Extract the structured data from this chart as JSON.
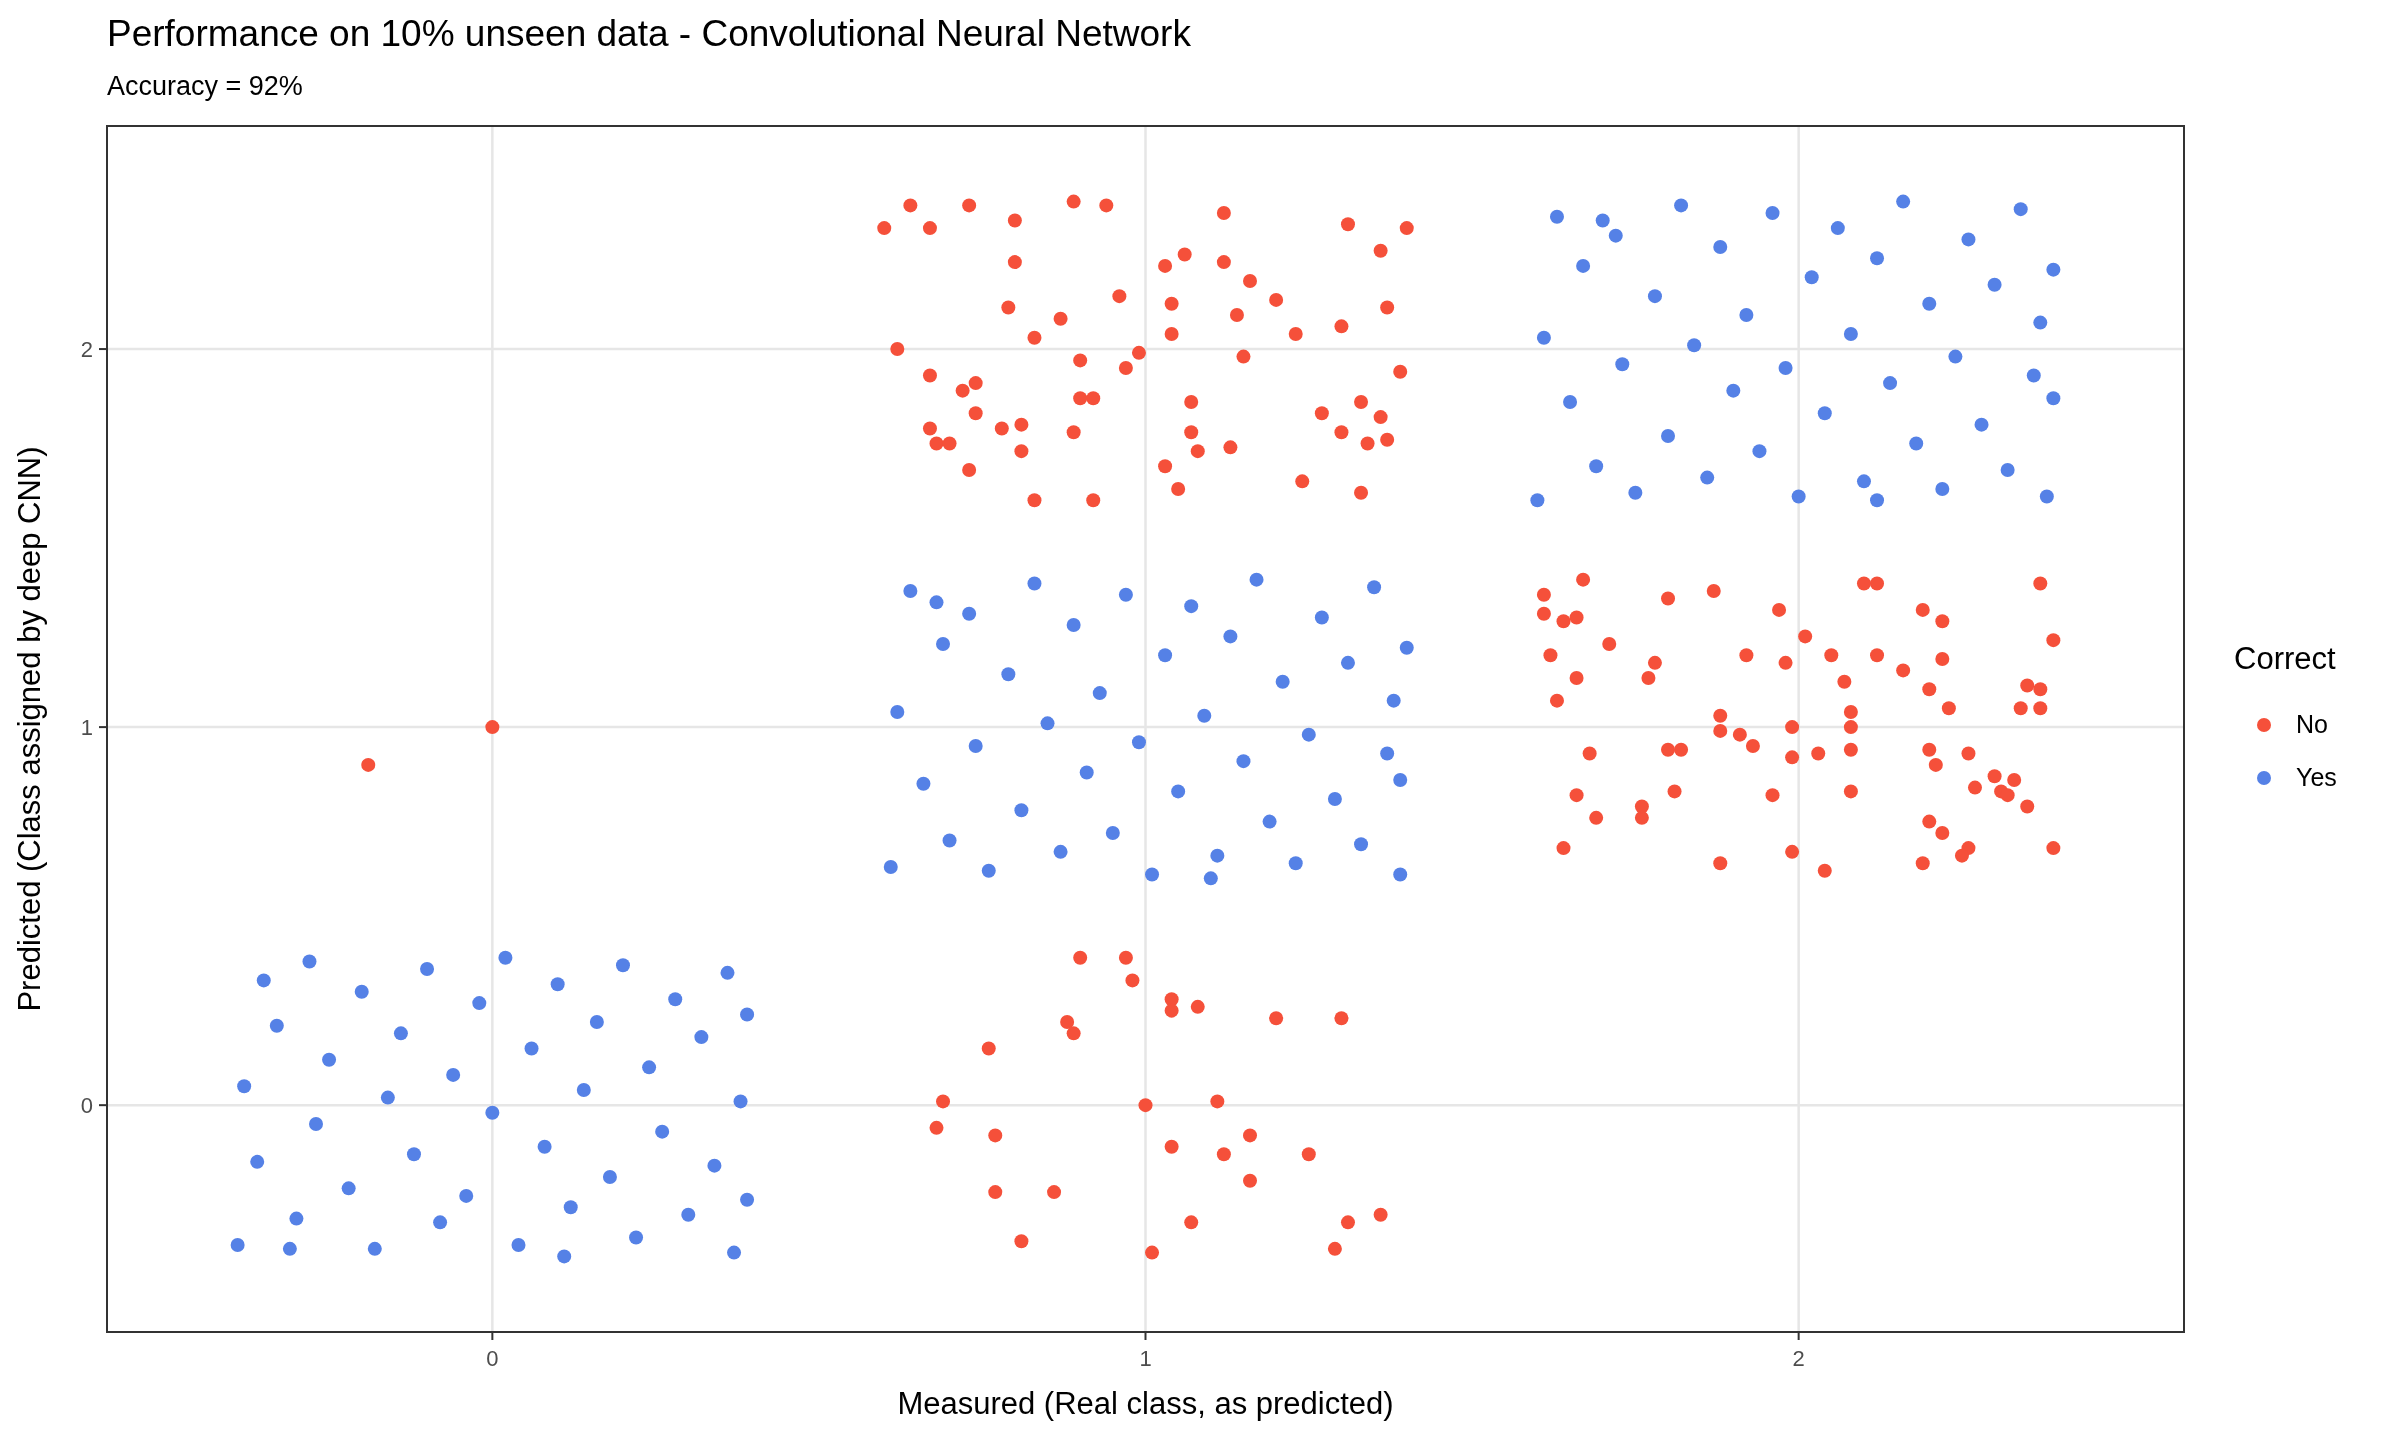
{
  "chart_data": {
    "type": "scatter",
    "title": "Performance on 10% unseen data - Convolutional Neural Network",
    "subtitle": "Accuracy = 92%",
    "xlabel": "Measured (Real class, as predicted)",
    "ylabel": "Predicted (Class assigned by deep CNN)",
    "legend_title": "Correct",
    "legend": "right",
    "grid": true,
    "marker": "circle",
    "xlim": [
      -0.59,
      2.59
    ],
    "ylim": [
      -0.6,
      2.59
    ],
    "xticks": [
      0,
      1,
      2
    ],
    "yticks": [
      0,
      1,
      2
    ],
    "series": [
      {
        "name": "No",
        "color": "#f5503a",
        "x": [
          -0.19,
          0,
          0.6,
          0.64,
          0.67,
          0.73,
          0.8,
          0.89,
          0.94,
          1.12,
          1.31,
          1.4,
          1.36,
          0.8,
          1.06,
          1.03,
          1.12,
          1.16,
          1.2,
          0.96,
          0.79,
          0.87,
          1.04,
          1.14,
          1.3,
          1.37,
          0.62,
          0.83,
          1.04,
          1.23,
          0.97,
          0.99,
          0.9,
          0.67,
          0.74,
          1.15,
          1.39,
          0.72,
          0.74,
          0.9,
          0.92,
          1.07,
          1.27,
          1.33,
          1.36,
          0.67,
          0.78,
          0.81,
          0.89,
          1.07,
          1.3,
          0.68,
          0.7,
          0.81,
          1.08,
          1.13,
          1.34,
          1.37,
          0.73,
          1.03,
          1.05,
          1.24,
          1.33,
          0.83,
          0.92,
          1.61,
          1.67,
          1.61,
          1.64,
          1.66,
          1.71,
          1.8,
          1.87,
          1.97,
          2.01,
          2.1,
          2.12,
          2.19,
          2.22,
          2.37,
          2.39,
          1.62,
          1.78,
          1.77,
          1.92,
          1.98,
          2.05,
          2.12,
          2.16,
          2.2,
          2.22,
          1.66,
          1.63,
          2.07,
          2.08,
          2.23,
          2.35,
          2.37,
          2.34,
          2.37,
          1.88,
          1.88,
          1.91,
          1.99,
          2.08,
          1.68,
          1.8,
          1.82,
          1.93,
          1.99,
          2.03,
          2.08,
          2.2,
          2.26,
          2.21,
          2.3,
          2.33,
          2.27,
          2.08,
          1.81,
          1.96,
          2.31,
          2.32,
          1.66,
          1.76,
          1.76,
          2.35,
          1.69,
          2.2,
          2.22,
          1.64,
          1.99,
          2.26,
          2.25,
          2.39,
          1.88,
          2.04,
          2.19,
          0.97,
          0.9,
          0.98,
          1.04,
          1.08,
          1.04,
          1.2,
          1.3,
          0.88,
          0.89,
          0.76,
          0.69,
          1.0,
          1.11,
          0.68,
          0.77,
          1.16,
          1.04,
          1.12,
          1.25,
          1.16,
          0.77,
          0.86,
          1.07,
          1.31,
          1.36,
          0.81,
          1.29,
          1.01
        ],
        "values": [
          0.9,
          1.0,
          2.32,
          2.38,
          2.32,
          2.38,
          2.34,
          2.39,
          2.38,
          2.36,
          2.33,
          2.32,
          2.26,
          2.23,
          2.25,
          2.22,
          2.23,
          2.18,
          2.13,
          2.14,
          2.11,
          2.08,
          2.12,
          2.09,
          2.06,
          2.11,
          2.0,
          2.03,
          2.04,
          2.04,
          1.95,
          1.99,
          1.97,
          1.93,
          1.91,
          1.98,
          1.94,
          1.89,
          1.83,
          1.87,
          1.87,
          1.86,
          1.83,
          1.86,
          1.82,
          1.79,
          1.79,
          1.8,
          1.78,
          1.78,
          1.78,
          1.75,
          1.75,
          1.73,
          1.73,
          1.74,
          1.75,
          1.76,
          1.68,
          1.69,
          1.63,
          1.65,
          1.62,
          1.6,
          1.6,
          1.35,
          1.39,
          1.3,
          1.28,
          1.29,
          1.22,
          1.34,
          1.36,
          1.31,
          1.24,
          1.38,
          1.38,
          1.31,
          1.28,
          1.38,
          1.23,
          1.19,
          1.17,
          1.13,
          1.19,
          1.17,
          1.19,
          1.19,
          1.15,
          1.1,
          1.18,
          1.13,
          1.07,
          1.12,
          1.04,
          1.05,
          1.11,
          1.1,
          1.05,
          1.05,
          1.03,
          0.99,
          0.98,
          1.0,
          1.0,
          0.93,
          0.94,
          0.94,
          0.95,
          0.92,
          0.93,
          0.94,
          0.94,
          0.93,
          0.9,
          0.87,
          0.86,
          0.84,
          0.83,
          0.83,
          0.82,
          0.83,
          0.82,
          0.82,
          0.79,
          0.76,
          0.79,
          0.76,
          0.75,
          0.72,
          0.68,
          0.67,
          0.68,
          0.66,
          0.68,
          0.64,
          0.62,
          0.64,
          0.39,
          0.39,
          0.33,
          0.28,
          0.26,
          0.25,
          0.23,
          0.23,
          0.22,
          0.19,
          0.15,
          0.01,
          0.0,
          0.01,
          -0.06,
          -0.08,
          -0.08,
          -0.11,
          -0.13,
          -0.13,
          -0.2,
          -0.23,
          -0.23,
          -0.31,
          -0.31,
          -0.29,
          -0.36,
          -0.38,
          -0.39
        ]
      },
      {
        "name": "Yes",
        "color": "#5581e6",
        "x": [
          -0.39,
          -0.35,
          -0.38,
          -0.36,
          -0.33,
          -0.3,
          -0.28,
          -0.27,
          -0.25,
          -0.22,
          -0.2,
          -0.18,
          -0.16,
          -0.14,
          -0.12,
          -0.1,
          -0.08,
          -0.06,
          -0.04,
          -0.02,
          0.0,
          0.02,
          0.04,
          0.06,
          0.08,
          0.1,
          0.12,
          0.14,
          0.16,
          0.18,
          0.2,
          0.22,
          0.24,
          0.26,
          0.28,
          0.3,
          0.32,
          0.34,
          0.36,
          0.37,
          0.38,
          0.39,
          0.39,
          -0.31,
          0.11,
          0.61,
          0.64,
          0.62,
          0.66,
          0.69,
          0.7,
          0.73,
          0.74,
          0.76,
          0.79,
          0.81,
          0.83,
          0.85,
          0.87,
          0.89,
          0.91,
          0.93,
          0.95,
          0.97,
          0.99,
          1.01,
          1.03,
          1.05,
          1.07,
          1.09,
          1.11,
          1.13,
          1.15,
          1.17,
          1.19,
          1.21,
          1.23,
          1.25,
          1.27,
          1.29,
          1.31,
          1.33,
          1.35,
          1.37,
          1.38,
          1.39,
          1.4,
          1.39,
          0.68,
          1.1,
          1.6,
          1.63,
          1.61,
          1.65,
          1.67,
          1.69,
          1.72,
          1.73,
          1.75,
          1.78,
          1.8,
          1.82,
          1.84,
          1.86,
          1.88,
          1.9,
          1.92,
          1.94,
          1.96,
          1.98,
          2.0,
          2.02,
          2.04,
          2.06,
          2.08,
          2.1,
          2.12,
          2.14,
          2.16,
          2.18,
          2.2,
          2.22,
          2.24,
          2.26,
          2.28,
          2.3,
          2.32,
          2.34,
          2.36,
          2.37,
          2.38,
          2.39,
          2.39,
          1.7,
          2.12
        ],
        "values": [
          -0.37,
          0.33,
          0.05,
          -0.15,
          0.21,
          -0.3,
          0.38,
          -0.05,
          0.12,
          -0.22,
          0.3,
          -0.38,
          0.02,
          0.19,
          -0.13,
          0.36,
          -0.31,
          0.08,
          -0.24,
          0.27,
          -0.02,
          0.39,
          -0.37,
          0.15,
          -0.11,
          0.32,
          -0.27,
          0.04,
          0.22,
          -0.19,
          0.37,
          -0.35,
          0.1,
          -0.07,
          0.28,
          -0.29,
          0.18,
          -0.16,
          0.35,
          -0.39,
          0.01,
          -0.25,
          0.24,
          -0.38,
          -0.4,
          0.63,
          1.36,
          1.04,
          0.85,
          1.22,
          0.7,
          1.3,
          0.95,
          0.62,
          1.14,
          0.78,
          1.38,
          1.01,
          0.67,
          1.27,
          0.88,
          1.09,
          0.72,
          1.35,
          0.96,
          0.61,
          1.19,
          0.83,
          1.32,
          1.03,
          0.66,
          1.24,
          0.91,
          1.39,
          0.75,
          1.12,
          0.64,
          0.98,
          1.29,
          0.81,
          1.17,
          0.69,
          1.37,
          0.93,
          1.07,
          0.61,
          1.21,
          0.86,
          1.33,
          0.6,
          1.6,
          2.35,
          2.03,
          1.86,
          2.22,
          1.69,
          2.3,
          1.96,
          1.62,
          2.14,
          1.77,
          2.38,
          2.01,
          1.66,
          2.27,
          1.89,
          2.09,
          1.73,
          2.36,
          1.95,
          1.61,
          2.19,
          1.83,
          2.32,
          2.04,
          1.65,
          2.24,
          1.91,
          2.39,
          1.75,
          2.12,
          1.63,
          1.98,
          2.29,
          1.8,
          2.17,
          1.68,
          2.37,
          1.93,
          2.07,
          1.61,
          2.21,
          1.87,
          2.34,
          1.6
        ]
      }
    ]
  }
}
